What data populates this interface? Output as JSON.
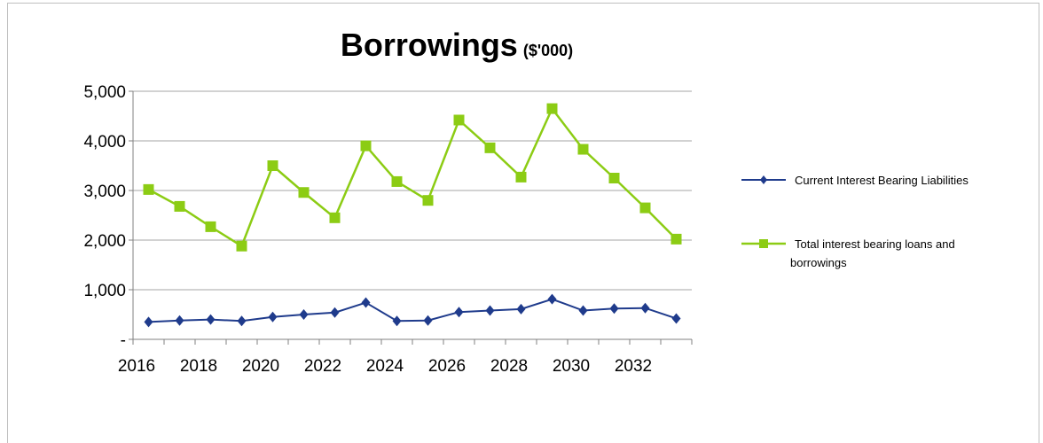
{
  "chart_data": {
    "type": "line",
    "title": "Borrowings",
    "title_unit": "($'000)",
    "xlabel": "",
    "ylabel": "",
    "x": [
      2016,
      2017,
      2018,
      2019,
      2020,
      2021,
      2022,
      2023,
      2024,
      2025,
      2026,
      2027,
      2028,
      2029,
      2030,
      2031,
      2032,
      2033
    ],
    "x_tick_labels": [
      "2016",
      "2018",
      "2020",
      "2022",
      "2024",
      "2026",
      "2028",
      "2030",
      "2032"
    ],
    "y_tick_labels": [
      "-",
      "1,000",
      "2,000",
      "3,000",
      "4,000",
      "5,000"
    ],
    "ylim": [
      0,
      5000
    ],
    "grid": "horizontal",
    "legend_position": "right",
    "series": [
      {
        "name": "Current Interest Bearing Liabilities",
        "color": "#1f3b8c",
        "marker": "diamond",
        "values": [
          350,
          380,
          400,
          370,
          450,
          500,
          540,
          740,
          370,
          380,
          550,
          580,
          610,
          810,
          580,
          620,
          630,
          420
        ]
      },
      {
        "name": "Total interest bearing loans and borrowings",
        "name_lines": [
          "Total interest bearing loans and",
          "borrowings"
        ],
        "color": "#8ccc14",
        "marker": "square",
        "values": [
          3020,
          2680,
          2270,
          1880,
          3500,
          2960,
          2450,
          3900,
          3180,
          2800,
          4420,
          3860,
          3270,
          4650,
          3830,
          3250,
          2650,
          2020
        ]
      }
    ]
  }
}
